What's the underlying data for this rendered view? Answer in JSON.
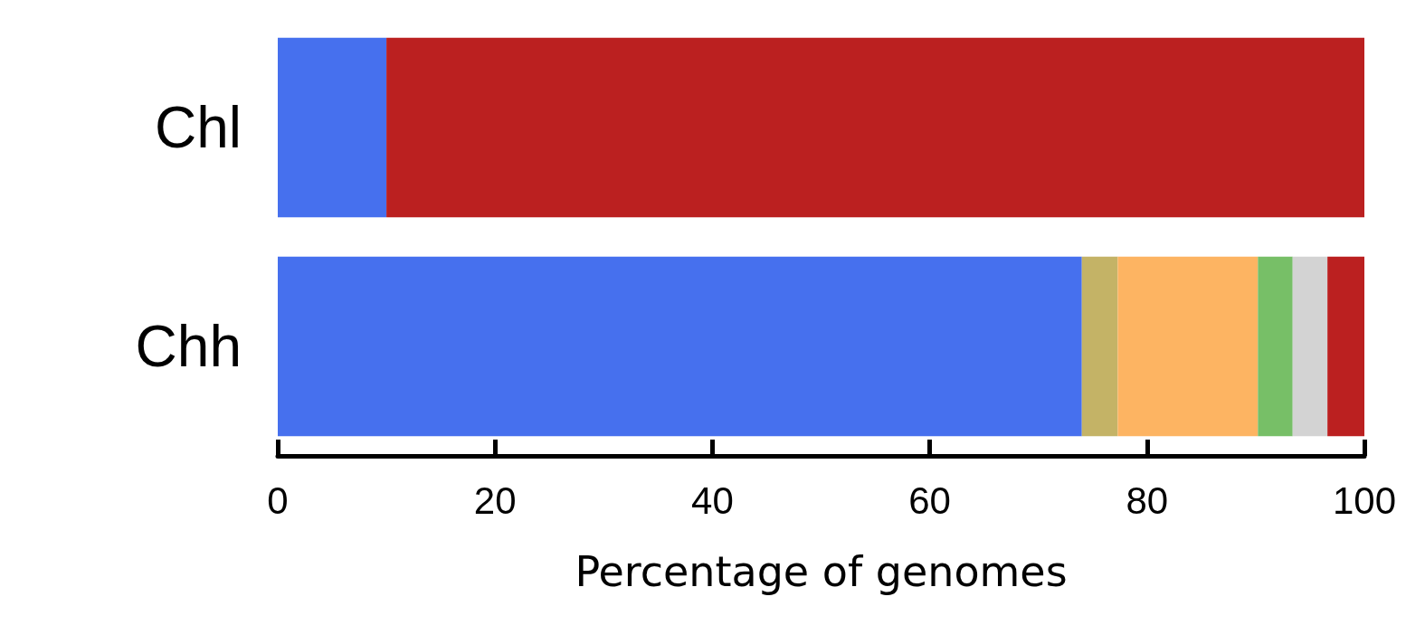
{
  "chart_data": {
    "type": "bar",
    "orientation": "horizontal",
    "stacked": true,
    "xlabel": "Percentage of genomes",
    "categories": [
      "Chl",
      "Chh"
    ],
    "series": [
      {
        "color": "#4670ee",
        "values": [
          10,
          74
        ]
      },
      {
        "color": "#c4b366",
        "values": [
          0,
          3.3
        ]
      },
      {
        "color": "#fdb462",
        "values": [
          0,
          12.9
        ]
      },
      {
        "color": "#77bf67",
        "values": [
          0,
          3.2
        ]
      },
      {
        "color": "#d3d3d3",
        "values": [
          0,
          3.2
        ]
      },
      {
        "color": "#bb2020",
        "values": [
          90,
          3.4
        ]
      }
    ],
    "xlim": [
      0,
      100
    ],
    "xticks": [
      0,
      20,
      40,
      60,
      80,
      100
    ],
    "grid": false
  }
}
